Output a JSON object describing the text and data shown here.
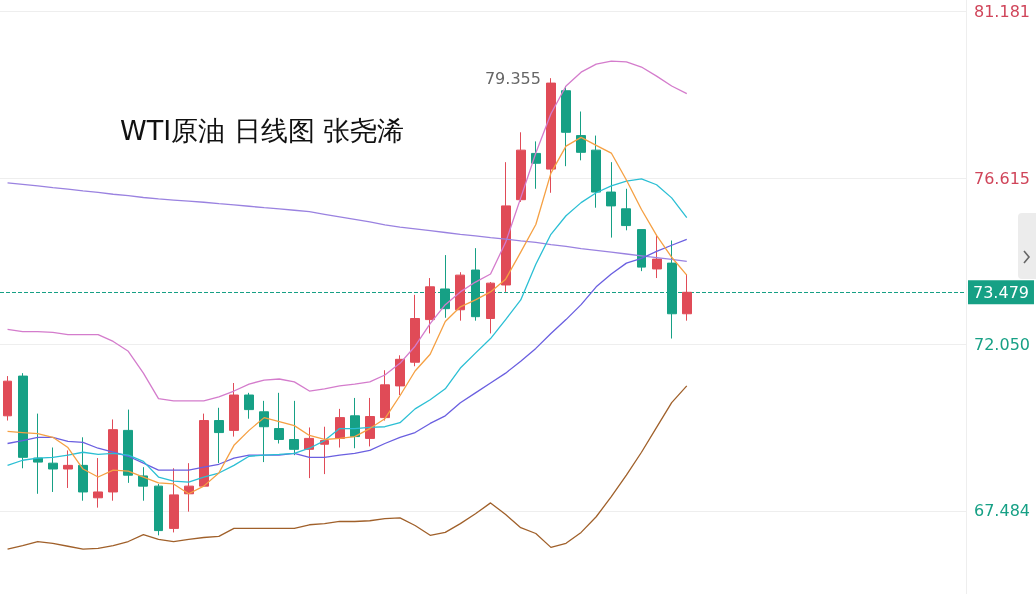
{
  "chart_data": {
    "type": "candlestick",
    "title": "WTI原油 日线图 张尧浠",
    "categories": [
      null,
      null,
      null,
      null,
      null,
      null,
      null,
      null,
      null,
      null,
      null,
      null,
      null,
      null,
      null,
      null,
      null,
      null,
      null,
      null,
      null,
      null,
      null,
      null,
      null,
      null,
      null,
      null,
      null,
      null,
      null,
      null,
      null,
      null,
      null,
      null,
      null,
      null,
      null,
      null,
      null,
      null,
      null,
      null,
      null,
      null,
      null,
      null,
      null,
      null,
      null,
      null,
      null,
      null,
      null,
      null,
      null,
      null,
      null,
      null,
      null,
      null,
      null,
      null
    ],
    "ohlc": [
      [
        70.09,
        71.18,
        69.96,
        71.04
      ],
      [
        71.18,
        71.26,
        68.65,
        68.95
      ],
      [
        68.93,
        70.15,
        67.95,
        68.82
      ],
      [
        68.79,
        69.22,
        68.0,
        68.63
      ],
      [
        68.63,
        69.14,
        68.11,
        68.73
      ],
      [
        68.73,
        69.5,
        67.76,
        68.0
      ],
      [
        67.84,
        68.93,
        67.57,
        68.0
      ],
      [
        68.0,
        69.99,
        67.76,
        69.71
      ],
      [
        69.69,
        70.26,
        68.25,
        68.46
      ],
      [
        68.44,
        68.68,
        67.76,
        68.16
      ],
      [
        68.16,
        68.22,
        66.81,
        66.94
      ],
      [
        67.0,
        68.65,
        66.89,
        67.92
      ],
      [
        67.95,
        68.79,
        67.46,
        68.16
      ],
      [
        68.16,
        70.15,
        68.14,
        69.96
      ],
      [
        69.96,
        70.31,
        68.79,
        69.63
      ],
      [
        69.69,
        70.99,
        69.52,
        70.66
      ],
      [
        70.66,
        70.72,
        70.01,
        70.26
      ],
      [
        70.2,
        70.5,
        68.82,
        69.79
      ],
      [
        69.74,
        70.72,
        69.33,
        69.44
      ],
      [
        69.44,
        70.5,
        69.01,
        69.17
      ],
      [
        69.17,
        69.77,
        68.38,
        69.47
      ],
      [
        69.31,
        69.79,
        68.49,
        69.41
      ],
      [
        69.47,
        70.28,
        69.22,
        70.04
      ],
      [
        70.09,
        70.58,
        69.2,
        69.52
      ],
      [
        69.47,
        70.58,
        69.25,
        70.07
      ],
      [
        70.04,
        71.34,
        69.96,
        70.94
      ],
      [
        70.91,
        71.75,
        70.66,
        71.64
      ],
      [
        71.56,
        73.41,
        71.45,
        72.76
      ],
      [
        72.73,
        73.87,
        72.35,
        73.63
      ],
      [
        73.57,
        74.5,
        72.78,
        73.03
      ],
      [
        73.0,
        74.03,
        72.7,
        73.95
      ],
      [
        74.09,
        74.69,
        72.7,
        72.81
      ],
      [
        72.76,
        73.76,
        72.35,
        73.73
      ],
      [
        73.68,
        77.05,
        73.49,
        75.85
      ],
      [
        76.02,
        77.87,
        75.96,
        77.38
      ],
      [
        77.29,
        77.62,
        76.32,
        77.02
      ],
      [
        76.86,
        79.355,
        76.21,
        79.22
      ],
      [
        79.01,
        79.14,
        76.94,
        77.87
      ],
      [
        77.78,
        78.44,
        77.1,
        77.32
      ],
      [
        77.38,
        77.78,
        75.8,
        76.23
      ],
      [
        76.23,
        77.05,
        74.98,
        75.85
      ],
      [
        75.77,
        76.32,
        75.18,
        75.31
      ],
      [
        75.2,
        75.2,
        74.06,
        74.17
      ],
      [
        74.12,
        75.04,
        73.87,
        74.39
      ],
      [
        74.28,
        74.9,
        72.21,
        72.89
      ],
      [
        72.89,
        73.98,
        72.7,
        73.479
      ],
      null,
      null,
      null,
      null,
      null,
      null,
      null,
      null,
      null,
      null,
      null,
      null,
      null,
      null,
      null,
      null,
      null,
      null
    ],
    "colors": [
      "#e04b57",
      "#16a085",
      "#16a085",
      "#16a085",
      "#e04b57",
      "#16a085",
      "#e04b57",
      "#e04b57",
      "#16a085",
      "#16a085",
      "#16a085",
      "#e04b57",
      "#e04b57",
      "#e04b57",
      "#16a085",
      "#e04b57",
      "#16a085",
      "#16a085",
      "#16a085",
      "#16a085",
      "#e04b57",
      "#e04b57",
      "#e04b57",
      "#16a085",
      "#e04b57",
      "#e04b57",
      "#e04b57",
      "#e04b57",
      "#e04b57",
      "#16a085",
      "#e04b57",
      "#16a085",
      "#e04b57",
      "#e04b57",
      "#e04b57",
      "#16a085",
      "#e04b57",
      "#16a085",
      "#16a085",
      "#16a085",
      "#16a085",
      "#16a085",
      "#16a085",
      "#e04b57",
      "#16a085",
      "#e04b57",
      null,
      null,
      null,
      null,
      null,
      null,
      null,
      null,
      null,
      null,
      null,
      null,
      null,
      null,
      null,
      null,
      null,
      null
    ],
    "series": [
      {
        "type": "line",
        "color": "#d47ccc",
        "values": [
          72.46,
          72.4,
          72.4,
          72.38,
          72.32,
          72.32,
          72.32,
          72.13,
          71.86,
          71.26,
          70.56,
          70.5,
          70.5,
          70.5,
          70.61,
          70.77,
          70.96,
          71.07,
          71.1,
          71.02,
          70.77,
          70.83,
          70.91,
          70.96,
          71.02,
          71.21,
          71.53,
          72.0,
          72.62,
          73.14,
          73.49,
          73.76,
          73.98,
          74.85,
          76.07,
          77.3,
          78.38,
          79.14,
          79.52,
          79.74,
          79.82,
          79.8,
          79.66,
          79.41,
          79.14,
          78.93,
          null,
          null,
          null,
          null,
          null,
          null,
          null,
          null,
          null,
          null,
          null,
          null,
          null,
          null,
          null,
          null,
          null,
          null
        ]
      },
      {
        "type": "line",
        "color": "#9a82e0",
        "values": [
          76.48,
          76.44,
          76.4,
          76.35,
          76.31,
          76.26,
          76.22,
          76.17,
          76.13,
          76.08,
          76.04,
          76.01,
          75.98,
          75.95,
          75.91,
          75.88,
          75.84,
          75.8,
          75.77,
          75.73,
          75.69,
          75.62,
          75.55,
          75.48,
          75.41,
          75.33,
          75.27,
          75.22,
          75.17,
          75.12,
          75.07,
          75.03,
          74.98,
          74.94,
          74.89,
          74.85,
          74.79,
          74.74,
          74.68,
          74.63,
          74.58,
          74.53,
          74.48,
          74.43,
          74.38,
          74.33,
          null,
          null,
          null,
          null,
          null,
          null,
          null,
          null,
          null,
          null,
          null,
          null,
          null,
          null,
          null,
          null,
          null,
          null
        ]
      },
      {
        "type": "line",
        "color": "#6a5fe0",
        "values": [
          69.33,
          69.41,
          69.5,
          69.5,
          69.39,
          69.36,
          69.2,
          69.09,
          68.98,
          68.79,
          68.6,
          68.6,
          68.6,
          68.68,
          68.76,
          68.93,
          69.01,
          69.01,
          69.01,
          69.06,
          68.95,
          68.95,
          69.01,
          69.06,
          69.14,
          69.33,
          69.5,
          69.63,
          69.88,
          70.09,
          70.45,
          70.72,
          70.99,
          71.26,
          71.59,
          71.94,
          72.35,
          72.73,
          73.14,
          73.63,
          73.98,
          74.28,
          74.41,
          74.6,
          74.77,
          74.93,
          null,
          null,
          null,
          null,
          null,
          null,
          null,
          null,
          null,
          null,
          null,
          null,
          null,
          null,
          null,
          null,
          null,
          null
        ]
      },
      {
        "type": "line",
        "color": "#2bbfd4",
        "values": [
          68.73,
          68.87,
          68.93,
          68.95,
          69.01,
          69.09,
          69.03,
          69.06,
          69.01,
          68.84,
          68.41,
          68.3,
          68.27,
          68.41,
          68.52,
          68.73,
          68.98,
          69.01,
          69.03,
          69.06,
          69.2,
          69.41,
          69.74,
          69.74,
          69.77,
          69.79,
          69.9,
          70.28,
          70.53,
          70.83,
          71.4,
          71.81,
          72.21,
          72.73,
          73.27,
          74.25,
          75.07,
          75.58,
          75.94,
          76.21,
          76.4,
          76.53,
          76.59,
          76.43,
          76.07,
          75.53,
          null,
          null,
          null,
          null,
          null,
          null,
          null,
          null,
          null,
          null,
          null,
          null,
          null,
          null,
          null,
          null,
          null,
          null
        ]
      },
      {
        "type": "line",
        "color": "#f5a043",
        "values": [
          69.66,
          69.63,
          69.6,
          69.5,
          69.22,
          68.63,
          68.41,
          68.6,
          68.57,
          68.41,
          68.25,
          68.22,
          67.95,
          68.16,
          68.52,
          69.28,
          69.69,
          70.04,
          69.93,
          69.82,
          69.55,
          69.44,
          69.47,
          69.52,
          69.74,
          70.01,
          70.64,
          71.32,
          71.78,
          72.68,
          73.08,
          73.27,
          73.49,
          73.84,
          74.58,
          75.34,
          76.75,
          77.49,
          77.73,
          77.51,
          77.3,
          76.56,
          75.75,
          75.04,
          74.44,
          73.95,
          null,
          null,
          null,
          null,
          null,
          null,
          null,
          null,
          null,
          null,
          null,
          null,
          null,
          null,
          null,
          null,
          null,
          null
        ]
      },
      {
        "type": "line",
        "color": "#a0602a",
        "values": [
          66.43,
          66.53,
          66.64,
          66.59,
          66.51,
          66.43,
          66.45,
          66.53,
          66.64,
          66.83,
          66.7,
          66.64,
          66.7,
          66.75,
          66.78,
          67.0,
          67.0,
          67.0,
          67.0,
          67.0,
          67.1,
          67.13,
          67.19,
          67.19,
          67.21,
          67.27,
          67.29,
          67.08,
          66.81,
          66.89,
          67.13,
          67.4,
          67.7,
          67.38,
          67.02,
          66.86,
          66.48,
          66.59,
          66.89,
          67.32,
          67.87,
          68.46,
          69.09,
          69.77,
          70.45,
          70.91,
          null,
          null,
          null,
          null,
          null,
          null,
          null,
          null,
          null,
          null,
          null,
          null,
          null,
          null,
          null,
          null,
          null,
          null
        ]
      }
    ],
    "ylim": [
      65.2,
      81.5
    ],
    "yticks": [
      67.484,
      {
        "value": 72.05,
        "label": "72.050"
      },
      76.615,
      81.181
    ],
    "ref_lines": [
      {
        "axis": "y",
        "value": 73.479,
        "label": "73.479",
        "color": "#16a085",
        "line_style": "dashed"
      }
    ],
    "annotations": [
      "79.355"
    ],
    "grid": "y",
    "tick_labels": "y",
    "line_style": "solid",
    "marker": "none"
  }
}
